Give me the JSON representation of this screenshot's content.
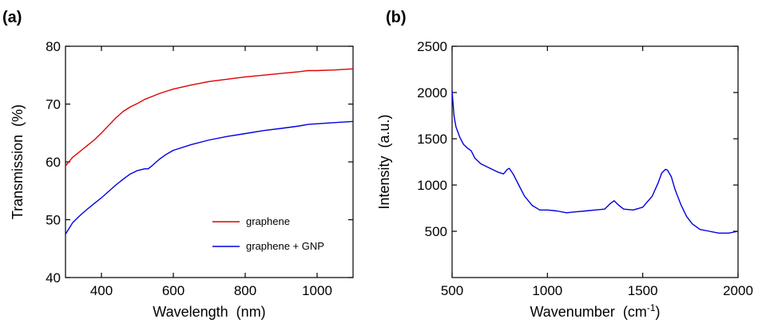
{
  "chart_data": [
    {
      "type": "line",
      "panel_label": "(a)",
      "xlabel": "Wavelength  (nm)",
      "ylabel": "Transmission  (%)",
      "xlim": [
        300,
        1100
      ],
      "ylim": [
        40,
        80
      ],
      "xticks": [
        400,
        600,
        800,
        1000
      ],
      "yticks": [
        40,
        50,
        60,
        70,
        80
      ],
      "grid": false,
      "legend_position": "bottom-right",
      "series": [
        {
          "name": "graphene",
          "color": "#e00000",
          "x": [
            300,
            320,
            340,
            360,
            380,
            400,
            420,
            440,
            460,
            480,
            500,
            520,
            540,
            560,
            580,
            600,
            650,
            700,
            750,
            800,
            850,
            900,
            950,
            975,
            1000,
            1050,
            1100
          ],
          "y": [
            59.3,
            60.8,
            61.8,
            62.8,
            63.8,
            65.0,
            66.3,
            67.6,
            68.7,
            69.5,
            70.1,
            70.8,
            71.3,
            71.8,
            72.2,
            72.6,
            73.3,
            73.9,
            74.3,
            74.7,
            75.0,
            75.3,
            75.6,
            75.8,
            75.8,
            75.9,
            76.1
          ]
        },
        {
          "name": "graphene + GNP",
          "color": "#0000e0",
          "x": [
            300,
            320,
            340,
            360,
            380,
            400,
            420,
            440,
            460,
            480,
            500,
            520,
            530,
            540,
            560,
            580,
            600,
            650,
            700,
            750,
            800,
            850,
            900,
            950,
            975,
            1000,
            1050,
            1100
          ],
          "y": [
            47.5,
            49.5,
            50.7,
            51.8,
            52.8,
            53.8,
            54.9,
            56.0,
            57.0,
            57.9,
            58.5,
            58.8,
            58.8,
            59.3,
            60.4,
            61.3,
            62.0,
            63.0,
            63.8,
            64.4,
            64.9,
            65.4,
            65.8,
            66.2,
            66.5,
            66.6,
            66.8,
            67.0
          ]
        }
      ]
    },
    {
      "type": "line",
      "panel_label": "(b)",
      "xlabel": "Wavenumber  (cm",
      "xlabel_sup": "-1",
      "xlabel_close": ")",
      "ylabel": "Intensity  (a.u.)",
      "xlim": [
        500,
        2000
      ],
      "ylim": [
        0,
        2500
      ],
      "xticks": [
        500,
        1000,
        1500,
        2000
      ],
      "yticks": [
        500,
        1000,
        1500,
        2000,
        2500
      ],
      "grid": false,
      "series": [
        {
          "color": "#0000e0",
          "x": [
            500,
            510,
            520,
            540,
            560,
            580,
            600,
            620,
            650,
            700,
            740,
            770,
            790,
            800,
            820,
            850,
            880,
            920,
            960,
            1000,
            1050,
            1100,
            1150,
            1200,
            1250,
            1300,
            1330,
            1350,
            1370,
            1400,
            1450,
            1500,
            1550,
            1580,
            1600,
            1620,
            1630,
            1650,
            1670,
            1700,
            1730,
            1760,
            1800,
            1850,
            1900,
            1950,
            2000
          ],
          "y": [
            2020,
            1750,
            1630,
            1520,
            1440,
            1400,
            1370,
            1290,
            1230,
            1180,
            1140,
            1120,
            1170,
            1180,
            1120,
            1000,
            880,
            780,
            730,
            730,
            720,
            700,
            710,
            720,
            730,
            740,
            800,
            830,
            790,
            740,
            730,
            760,
            880,
            1020,
            1130,
            1170,
            1160,
            1090,
            950,
            790,
            660,
            580,
            520,
            500,
            480,
            480,
            500
          ]
        }
      ]
    }
  ]
}
